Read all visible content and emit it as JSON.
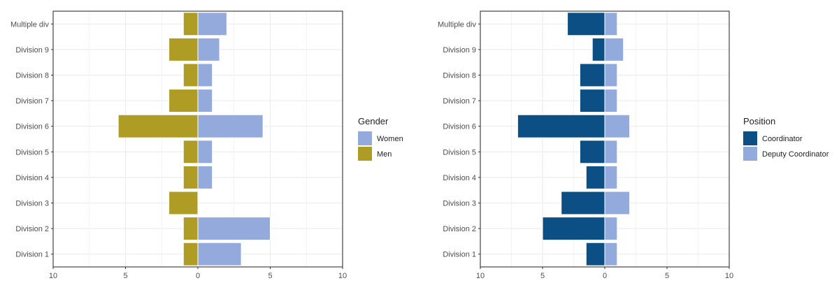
{
  "colors": {
    "women": "#94a9dc",
    "men": "#ae9c24",
    "coordinator": "#0b4f85",
    "deputy_coordinator": "#93aadc",
    "grid": "#ebebeb",
    "panel_border": "#333333",
    "axis_text": "#4d4d4d",
    "legend_title": "#222222"
  },
  "chart_data": [
    {
      "type": "bar",
      "orientation": "horizontal-diverging",
      "categories": [
        "Division 1",
        "Division 2",
        "Division 3",
        "Division 4",
        "Division 5",
        "Division 6",
        "Division 7",
        "Division 8",
        "Division 9",
        "Multiple div"
      ],
      "series": [
        {
          "name": "Women",
          "side": "right",
          "values": [
            3,
            5,
            0,
            1,
            1,
            4.5,
            1,
            1,
            1.5,
            2
          ]
        },
        {
          "name": "Men",
          "side": "left",
          "values": [
            1,
            1,
            2,
            1,
            1,
            5.5,
            2,
            1,
            2,
            1
          ]
        }
      ],
      "xlim": [
        -10,
        10
      ],
      "xticks": [
        -10,
        -5,
        0,
        5,
        10
      ],
      "xtick_labels": [
        "10",
        "5",
        "0",
        "5",
        "10"
      ],
      "legend": {
        "title": "Gender",
        "position": "right",
        "entries": [
          "Women",
          "Men"
        ]
      },
      "grid": true,
      "title": "",
      "xlabel": "",
      "ylabel": ""
    },
    {
      "type": "bar",
      "orientation": "horizontal-diverging",
      "categories": [
        "Division 1",
        "Division 2",
        "Division 3",
        "Division 4",
        "Division 5",
        "Division 6",
        "Division 7",
        "Division 8",
        "Division 9",
        "Multiple div"
      ],
      "series": [
        {
          "name": "Coordinator",
          "side": "left",
          "values": [
            1.5,
            5,
            3.5,
            1.5,
            2,
            7,
            2,
            2,
            1,
            3
          ]
        },
        {
          "name": "Deputy Coordinator",
          "side": "right",
          "values": [
            1,
            1,
            2,
            1,
            1,
            2,
            1,
            1,
            1.5,
            1
          ]
        }
      ],
      "xlim": [
        -10,
        10
      ],
      "xticks": [
        -10,
        -5,
        0,
        5,
        10
      ],
      "xtick_labels": [
        "10",
        "5",
        "0",
        "5",
        "10"
      ],
      "legend": {
        "title": "Position",
        "position": "right",
        "entries": [
          "Coordinator",
          "Deputy Coordinator"
        ]
      },
      "grid": true,
      "title": "",
      "xlabel": "",
      "ylabel": ""
    }
  ]
}
